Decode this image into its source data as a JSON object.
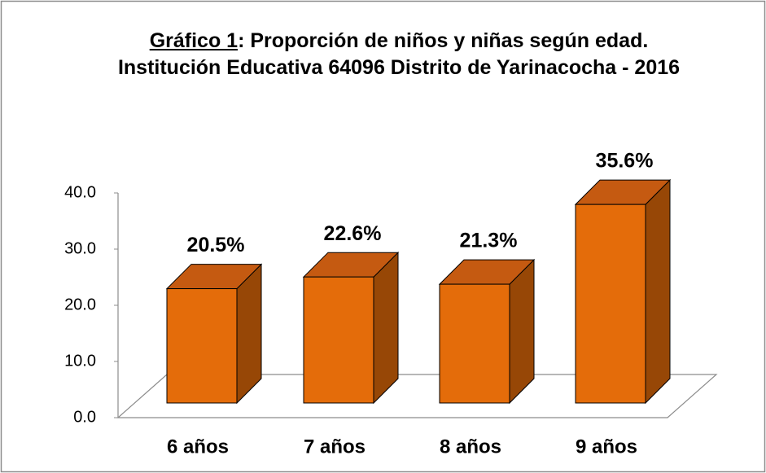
{
  "chart_data": {
    "type": "bar3d",
    "title": {
      "label": "Gráfico 1",
      "text": ": Proporción de niños y niñas según edad. Institución Educativa 64096 Distrito de Yarinacocha - 2016"
    },
    "categories": [
      "6 años",
      "7 años",
      "8 años",
      "9 años"
    ],
    "values": [
      20.5,
      22.6,
      21.3,
      35.6
    ],
    "value_labels": [
      "20.5%",
      "22.6%",
      "21.3%",
      "35.6%"
    ],
    "color": "#e46c0a",
    "ylim": [
      0,
      40
    ],
    "yticks": [
      {
        "value": 0,
        "label": "0.0"
      },
      {
        "value": 10,
        "label": "10.0"
      },
      {
        "value": 20,
        "label": "20.0"
      },
      {
        "value": 30,
        "label": "30.0"
      },
      {
        "value": 40,
        "label": "40.0"
      }
    ]
  }
}
